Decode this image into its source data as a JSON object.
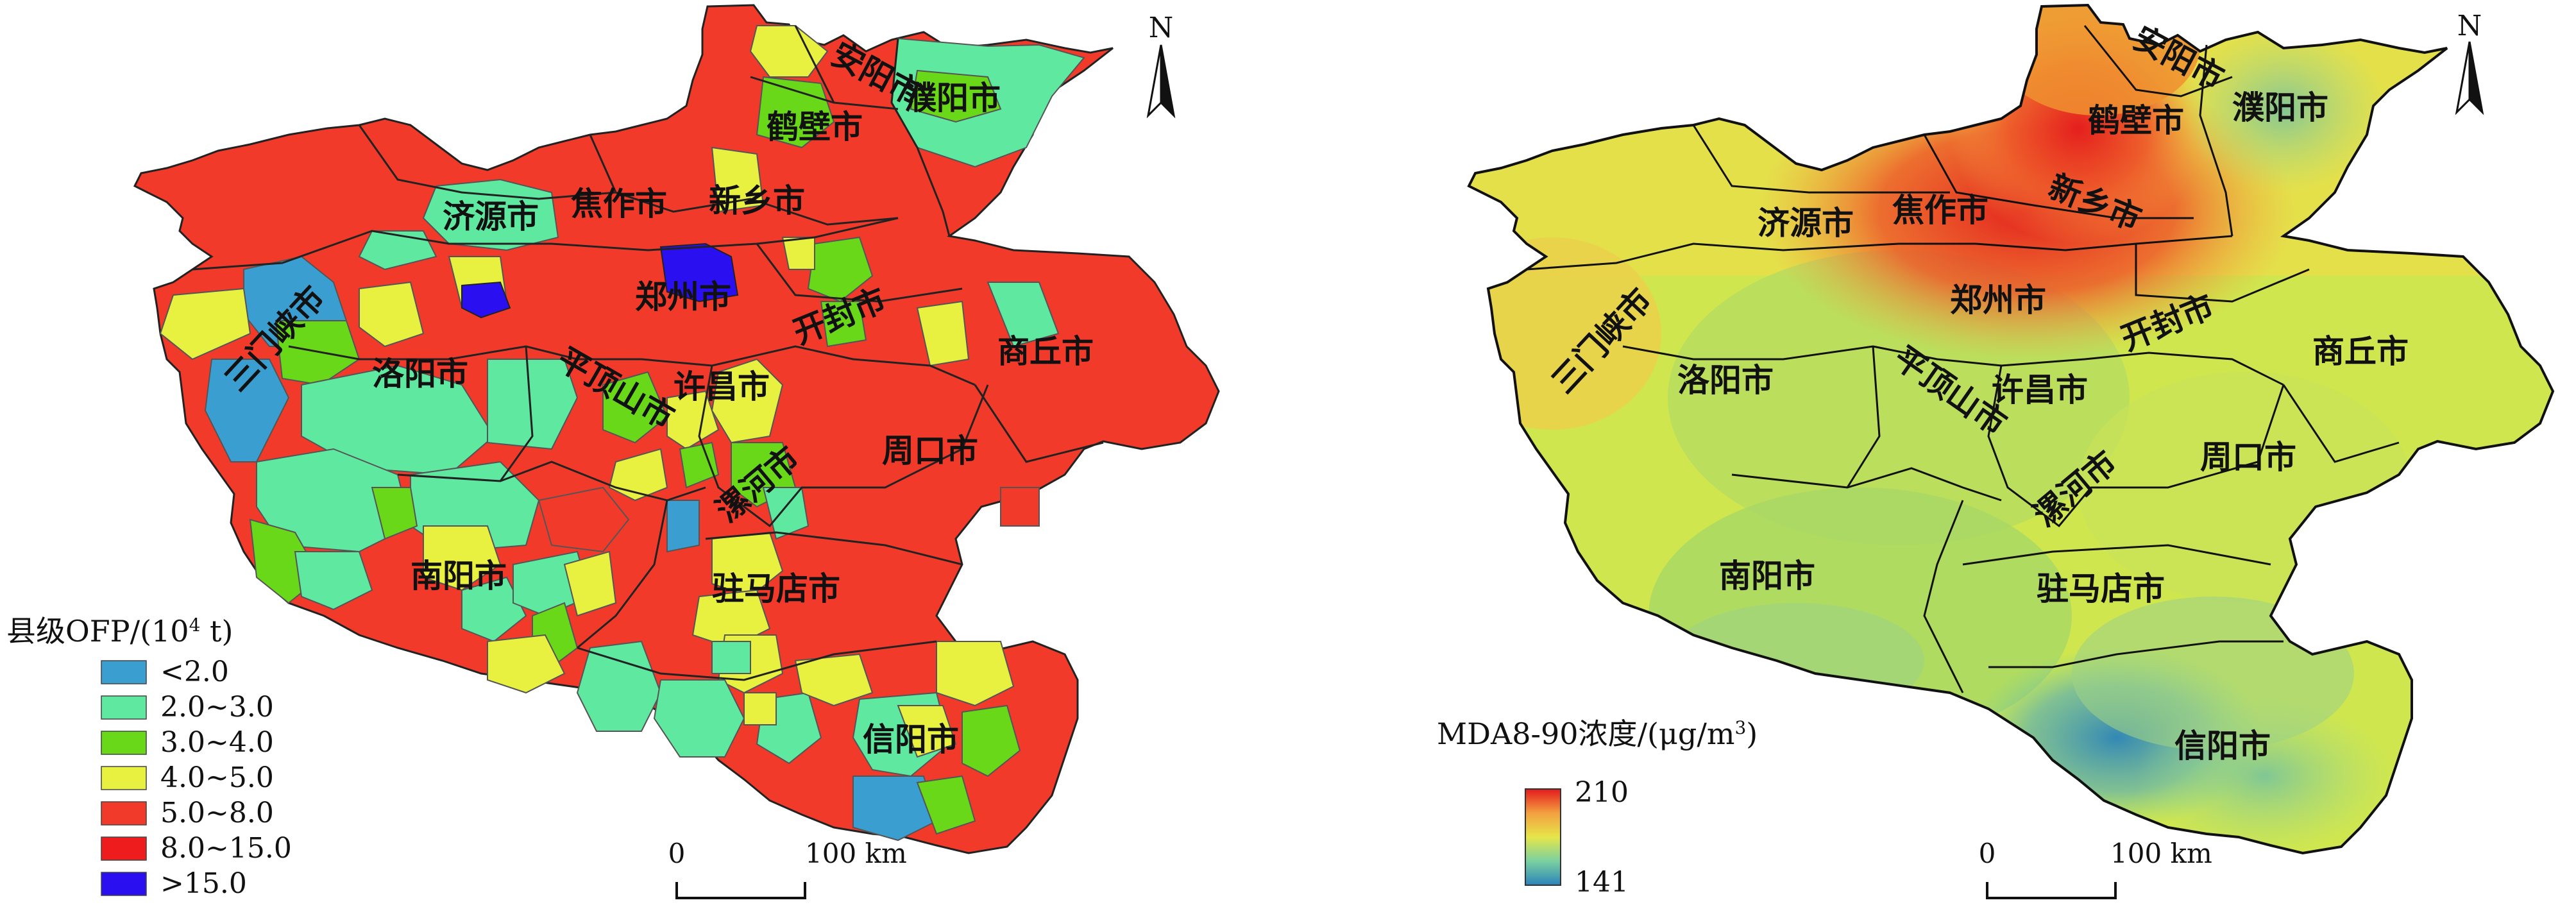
{
  "left_map": {
    "legend": {
      "title": "县级OFP/(10",
      "title_sup": "4",
      "title_end": " t)",
      "items": [
        {
          "label": "<2.0",
          "color": "#3a9fd0"
        },
        {
          "label": "2.0~3.0",
          "color": "#5fe8a0"
        },
        {
          "label": "3.0~4.0",
          "color": "#68d818"
        },
        {
          "label": "4.0~5.0",
          "color": "#e8f040"
        },
        {
          "label": "5.0~8.0",
          "color": "#f23a2a"
        },
        {
          "label": "8.0~15.0",
          "color": "#ee1c1c"
        },
        {
          "label": ">15.0",
          "color": "#2a10f0"
        }
      ]
    },
    "north": "N",
    "scale": {
      "zero": "0",
      "end": "100 km"
    },
    "cities": [
      "安阳市",
      "濮阳市",
      "鹤壁市",
      "新乡市",
      "济源市",
      "焦作市",
      "三门峡市",
      "郑州市",
      "开封市",
      "商丘市",
      "洛阳市",
      "许昌市",
      "平顶山市",
      "漯河市",
      "周口市",
      "南阳市",
      "驻马店市",
      "信阳市"
    ]
  },
  "right_map": {
    "legend": {
      "title": "MDA8-90浓度/(μg/m",
      "title_sup": "3",
      "title_end": ")",
      "max": "210",
      "min": "141",
      "color_high": "#e41a1c",
      "color_mid": "#e6e64a",
      "color_low": "#2b83ba"
    },
    "north": "N",
    "scale": {
      "zero": "0",
      "end": "100 km"
    },
    "cities": [
      "安阳市",
      "濮阳市",
      "鹤壁市",
      "新乡市",
      "济源市",
      "焦作市",
      "三门峡市",
      "郑州市",
      "开封市",
      "商丘市",
      "洛阳市",
      "许昌市",
      "平顶山市",
      "漯河市",
      "周口市",
      "南阳市",
      "驻马店市",
      "信阳市"
    ]
  }
}
